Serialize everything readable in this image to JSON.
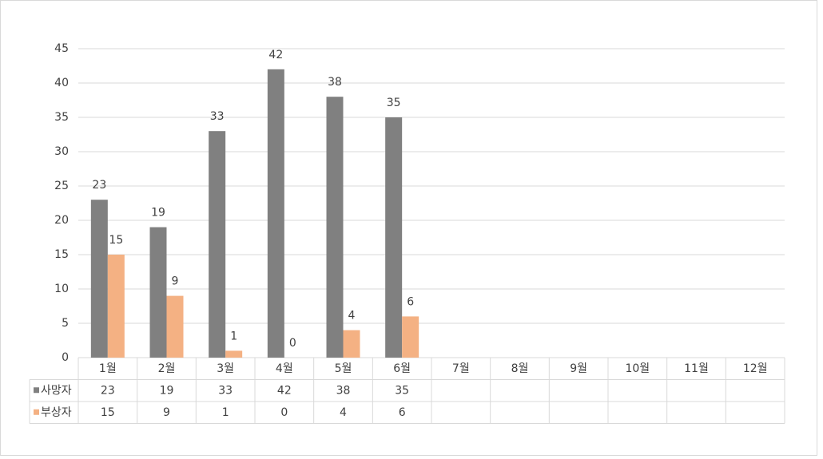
{
  "chart_data": {
    "type": "bar",
    "categories": [
      "1월",
      "2월",
      "3월",
      "4월",
      "5월",
      "6월",
      "7월",
      "8월",
      "9월",
      "10월",
      "11월",
      "12월"
    ],
    "series": [
      {
        "name": "사망자",
        "color": "#808080",
        "values": [
          23,
          19,
          33,
          42,
          38,
          35,
          null,
          null,
          null,
          null,
          null,
          null
        ]
      },
      {
        "name": "부상자",
        "color": "#f4b183",
        "values": [
          15,
          9,
          1,
          0,
          4,
          6,
          null,
          null,
          null,
          null,
          null,
          null
        ]
      }
    ],
    "ylim": [
      0,
      45
    ],
    "yticks": [
      0,
      5,
      10,
      15,
      20,
      25,
      30,
      35,
      40,
      45
    ],
    "grid": true,
    "data_table": true
  }
}
